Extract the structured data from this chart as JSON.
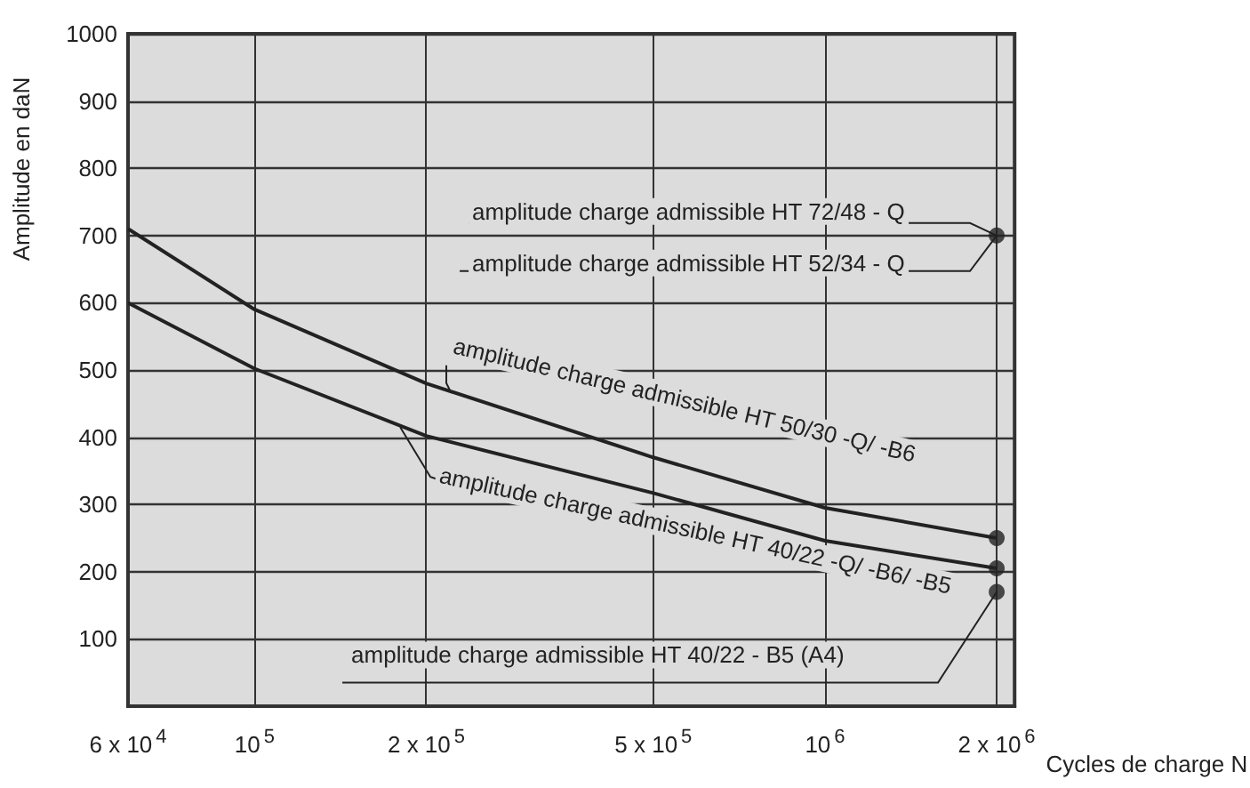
{
  "chart_data": {
    "type": "line",
    "xlabel": "Cycles de charge N",
    "ylabel": "Amplitude en daN",
    "series": [
      {
        "color": "#222222",
        "marker": "none",
        "x": [
          60000,
          100000,
          200000,
          500000,
          1000000,
          2000000
        ],
        "values": [
          710,
          590,
          480,
          370,
          295,
          250
        ]
      },
      {
        "color": "#222222",
        "marker": "none",
        "x": [
          60000,
          100000,
          200000,
          500000,
          1000000,
          2000000
        ],
        "values": [
          600,
          502,
          402,
          317,
          246,
          205
        ]
      },
      {
        "type": "scatter",
        "color": "#222222",
        "marker": "circle",
        "x": [
          2000000,
          2000000,
          2000000,
          2000000
        ],
        "values": [
          700,
          250,
          205,
          170
        ]
      }
    ],
    "annotations": [
      {
        "text": "amplitude charge admissible HT 72/48 - Q",
        "x": 2000000,
        "y": 700
      },
      {
        "text": "amplitude charge admissible HT 52/34 - Q",
        "x": 2000000,
        "y": 700
      },
      {
        "text": "amplitude charge admissible HT 50/30 -Q/ -B6",
        "x": 220000,
        "y": 470
      },
      {
        "text": "amplitude charge admissible HT 40/22 -Q/ -B6/ -B5",
        "x": 180000,
        "y": 415
      },
      {
        "text": "amplitude charge admissible HT 40/22 - B5 (A4)",
        "x": 2000000,
        "y": 170
      }
    ],
    "xlim": [
      60000,
      2150000
    ],
    "xticks": [
      {
        "value": 60000,
        "label": "6 x 10$^{4}$"
      },
      {
        "value": 100000,
        "label": "10$^{5}$"
      },
      {
        "value": 200000,
        "label": "2 x 10$^{5}$"
      },
      {
        "value": 500000,
        "label": "5 x 10$^{5}$"
      },
      {
        "value": 1000000,
        "label": "10$^{6}$"
      },
      {
        "value": 2000000,
        "label": "2 x 10$^{6}$"
      }
    ],
    "ylim": [
      0,
      1000
    ],
    "yticks": [
      100,
      200,
      300,
      400,
      500,
      600,
      700,
      800,
      900,
      1000
    ],
    "log": "x",
    "grid": true
  }
}
